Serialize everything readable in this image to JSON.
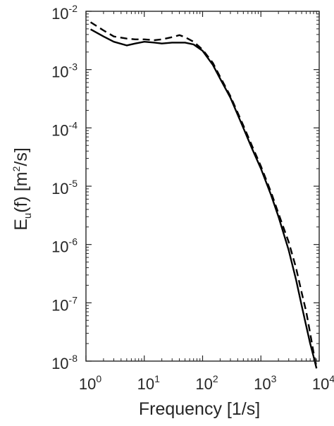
{
  "chart_data": {
    "type": "line",
    "title": "",
    "xlabel": "Frequency [1/s]",
    "ylabel": {
      "prefix": "E",
      "subscript": "u",
      "middle": "(f) [m",
      "superscript": "2",
      "suffix": "/s]"
    },
    "xscale": "log",
    "yscale": "log",
    "xlim": [
      1,
      10000
    ],
    "ylim": [
      1e-08,
      0.01
    ],
    "grid": false,
    "legend": "none",
    "x_ticks": [
      {
        "base": "10",
        "exp": "0"
      },
      {
        "base": "10",
        "exp": "1"
      },
      {
        "base": "10",
        "exp": "2"
      },
      {
        "base": "10",
        "exp": "3"
      },
      {
        "base": "10",
        "exp": "4"
      }
    ],
    "y_ticks": [
      {
        "base": "10",
        "exp": "-8"
      },
      {
        "base": "10",
        "exp": "-7"
      },
      {
        "base": "10",
        "exp": "-6"
      },
      {
        "base": "10",
        "exp": "-5"
      },
      {
        "base": "10",
        "exp": "-4"
      },
      {
        "base": "10",
        "exp": "-3"
      },
      {
        "base": "10",
        "exp": "-2"
      }
    ],
    "series": [
      {
        "style": "solid",
        "color": "#000000",
        "x": [
          1.2,
          2,
          3,
          5,
          7,
          10,
          15,
          20,
          30,
          40,
          50,
          70,
          100,
          150,
          200,
          300,
          500,
          700,
          1000,
          1500,
          2000,
          3000,
          4000,
          5000,
          6000,
          7000,
          8000,
          9000
        ],
        "y": [
          0.0049,
          0.0037,
          0.003,
          0.0026,
          0.0028,
          0.003,
          0.0029,
          0.0028,
          0.0029,
          0.0029,
          0.0029,
          0.0027,
          0.0021,
          0.0012,
          0.0007,
          0.00033,
          0.0001,
          4.5e-05,
          2e-05,
          7e-06,
          3e-06,
          8e-07,
          2.5e-07,
          9e-08,
          4e-08,
          2e-08,
          1.2e-08,
          7.5e-09
        ]
      },
      {
        "style": "dashed",
        "color": "#000000",
        "x": [
          1.2,
          2,
          3,
          5,
          7,
          10,
          15,
          20,
          30,
          40,
          50,
          70,
          100,
          150,
          200,
          300,
          500,
          700,
          1000,
          1500,
          2000,
          3000,
          4000,
          5000,
          6000,
          7000,
          8000,
          9000
        ],
        "y": [
          0.0065,
          0.0047,
          0.0037,
          0.0034,
          0.0033,
          0.0033,
          0.0032,
          0.0033,
          0.0036,
          0.0039,
          0.0036,
          0.003,
          0.0022,
          0.0013,
          0.00075,
          0.00035,
          0.00011,
          5e-05,
          2.2e-05,
          7.8e-06,
          3.4e-06,
          1.1e-06,
          4e-07,
          1.5e-07,
          7e-08,
          3e-08,
          1.4e-08,
          8e-09
        ]
      }
    ]
  }
}
